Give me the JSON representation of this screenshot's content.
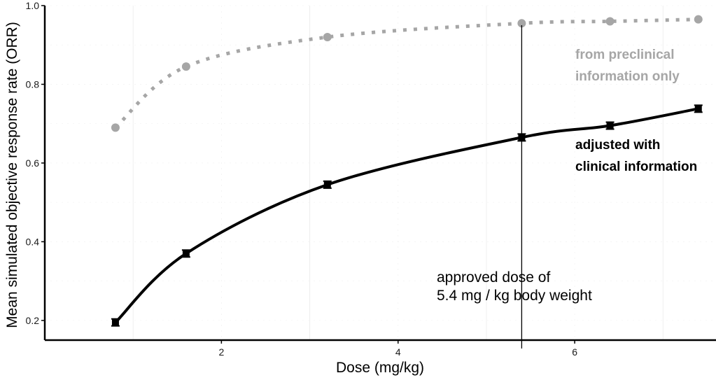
{
  "chart_data": {
    "type": "line",
    "xlabel": "Dose (mg/kg)",
    "ylabel": "Mean simulated objective response rate (ORR)",
    "xlim": [
      0.0,
      7.6
    ],
    "ylim": [
      0.15,
      1.0
    ],
    "x_ticks": [
      2,
      4,
      6
    ],
    "y_ticks": [
      0.2,
      0.4,
      0.6,
      0.8,
      1.0
    ],
    "grid": "light minor grid",
    "series": [
      {
        "name": "from preclinical information only",
        "color": "#a6a6a6",
        "style": "dotted",
        "x": [
          0.8,
          1.6,
          3.2,
          5.4,
          6.4,
          7.4
        ],
        "y": [
          0.69,
          0.845,
          0.92,
          0.955,
          0.96,
          0.965
        ]
      },
      {
        "name": "adjusted with clinical information",
        "color": "#000000",
        "style": "solid",
        "x": [
          0.8,
          1.6,
          3.2,
          5.4,
          6.4,
          7.4
        ],
        "y": [
          0.195,
          0.37,
          0.545,
          0.665,
          0.695,
          0.738
        ]
      }
    ],
    "annotations": {
      "approved_dose_x": 5.4,
      "approved_dose_line1": "approved dose of",
      "approved_dose_line2": "5.4 mg / kg body weight",
      "preclinical_line1": "from preclinical",
      "preclinical_line2": "information only",
      "clinical_line1": "adjusted with",
      "clinical_line2": "clinical information"
    }
  }
}
